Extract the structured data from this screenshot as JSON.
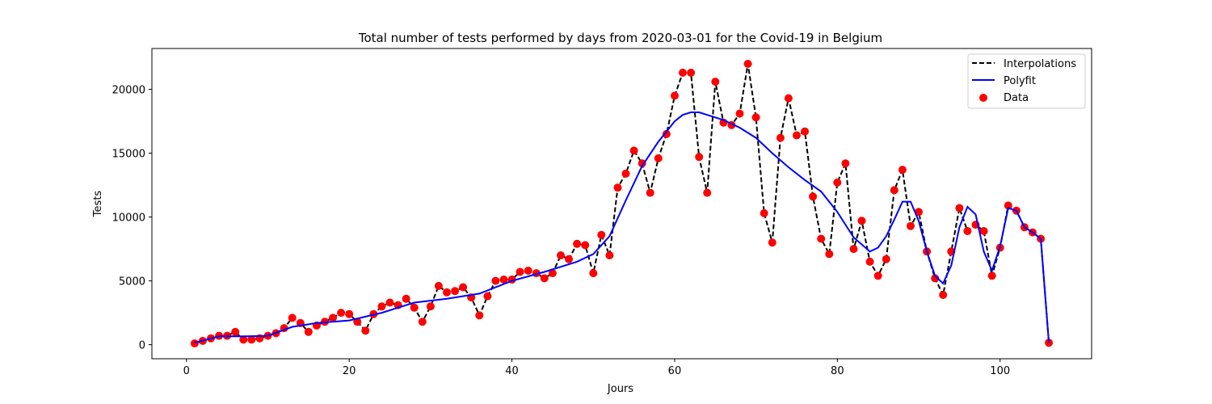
{
  "chart_data": {
    "type": "line",
    "title": "Total number of tests performed by days from 2020-03-01 for the Covid-19 in Belgium",
    "xlabel": "Jours",
    "ylabel": "Tests",
    "xlim": [
      -4.25,
      111.25
    ],
    "ylim": [
      -1100,
      23200
    ],
    "xticks": [
      0,
      20,
      40,
      60,
      80,
      100
    ],
    "yticks": [
      0,
      5000,
      10000,
      15000,
      20000
    ],
    "legend": [
      "Interpolations",
      "Polyfit",
      "Data"
    ],
    "legend_position": "top-right",
    "series": [
      {
        "name": "Data",
        "kind": "scatter",
        "color": "#ff0000",
        "x": [
          1,
          2,
          3,
          4,
          5,
          6,
          7,
          8,
          9,
          10,
          11,
          12,
          13,
          14,
          15,
          16,
          17,
          18,
          19,
          20,
          21,
          22,
          23,
          24,
          25,
          26,
          27,
          28,
          29,
          30,
          31,
          32,
          33,
          34,
          35,
          36,
          37,
          38,
          39,
          40,
          41,
          42,
          43,
          44,
          45,
          46,
          47,
          48,
          49,
          50,
          51,
          52,
          53,
          54,
          55,
          56,
          57,
          58,
          59,
          60,
          61,
          62,
          63,
          64,
          65,
          66,
          67,
          68,
          69,
          70,
          71,
          72,
          73,
          74,
          75,
          76,
          77,
          78,
          79,
          80,
          81,
          82,
          83,
          84,
          85,
          86,
          87,
          88,
          89,
          90,
          91,
          92,
          93,
          94,
          95,
          96,
          97,
          98,
          99,
          100,
          101,
          102,
          103,
          104,
          105,
          106
        ],
        "y": [
          100,
          300,
          500,
          700,
          700,
          1000,
          400,
          400,
          500,
          700,
          900,
          1300,
          2100,
          1700,
          1000,
          1500,
          1800,
          2100,
          2500,
          2400,
          1800,
          1100,
          2400,
          3000,
          3300,
          3100,
          3600,
          2900,
          1800,
          3000,
          4600,
          4100,
          4200,
          4500,
          3700,
          2300,
          3800,
          5000,
          5100,
          5100,
          5700,
          5800,
          5600,
          5200,
          5600,
          7000,
          6700,
          7900,
          7800,
          5600,
          8600,
          7000,
          12300,
          13400,
          15200,
          14200,
          11900,
          14600,
          16500,
          19500,
          21300,
          21300,
          14700,
          11900,
          20600,
          17400,
          17200,
          18100,
          22000,
          17800,
          10300,
          8000,
          16200,
          19300,
          16400,
          16700,
          11600,
          8300,
          7100,
          12700,
          14200,
          7500,
          9700,
          6500,
          5400,
          6700,
          12100,
          13700,
          9300,
          10400,
          7300,
          5200,
          3900,
          7300,
          10700,
          8900,
          9400,
          8900,
          5400,
          7600,
          10900,
          10500,
          9200,
          8800,
          8300,
          150
        ]
      },
      {
        "name": "Interpolations",
        "kind": "line",
        "style": "dashed",
        "color": "#000000"
      },
      {
        "name": "Polyfit",
        "kind": "line",
        "color": "#0000ff",
        "x": [
          1,
          4,
          7,
          10,
          13,
          16,
          20,
          24,
          28,
          32,
          36,
          40,
          44,
          48,
          50,
          52,
          54,
          56,
          58,
          60,
          61,
          62,
          63,
          64,
          66,
          68,
          70,
          72,
          74,
          76,
          78,
          80,
          82,
          84,
          85,
          86,
          87,
          88,
          89,
          90,
          91,
          92,
          93,
          94,
          95,
          96,
          97,
          98,
          99,
          100,
          101,
          102,
          103,
          104,
          105,
          106
        ],
        "y": [
          150,
          650,
          650,
          700,
          1400,
          1700,
          1900,
          2500,
          3300,
          3600,
          4000,
          5000,
          5700,
          6500,
          7100,
          8500,
          11300,
          14000,
          15900,
          17500,
          18000,
          18200,
          18200,
          18000,
          17600,
          17000,
          16200,
          15000,
          13900,
          12900,
          12000,
          10400,
          8400,
          7300,
          7600,
          8500,
          9800,
          11200,
          11200,
          9700,
          7300,
          5400,
          4800,
          6200,
          9200,
          10800,
          10200,
          7300,
          5800,
          7700,
          10700,
          10500,
          9200,
          8800,
          8300,
          150
        ]
      }
    ]
  }
}
